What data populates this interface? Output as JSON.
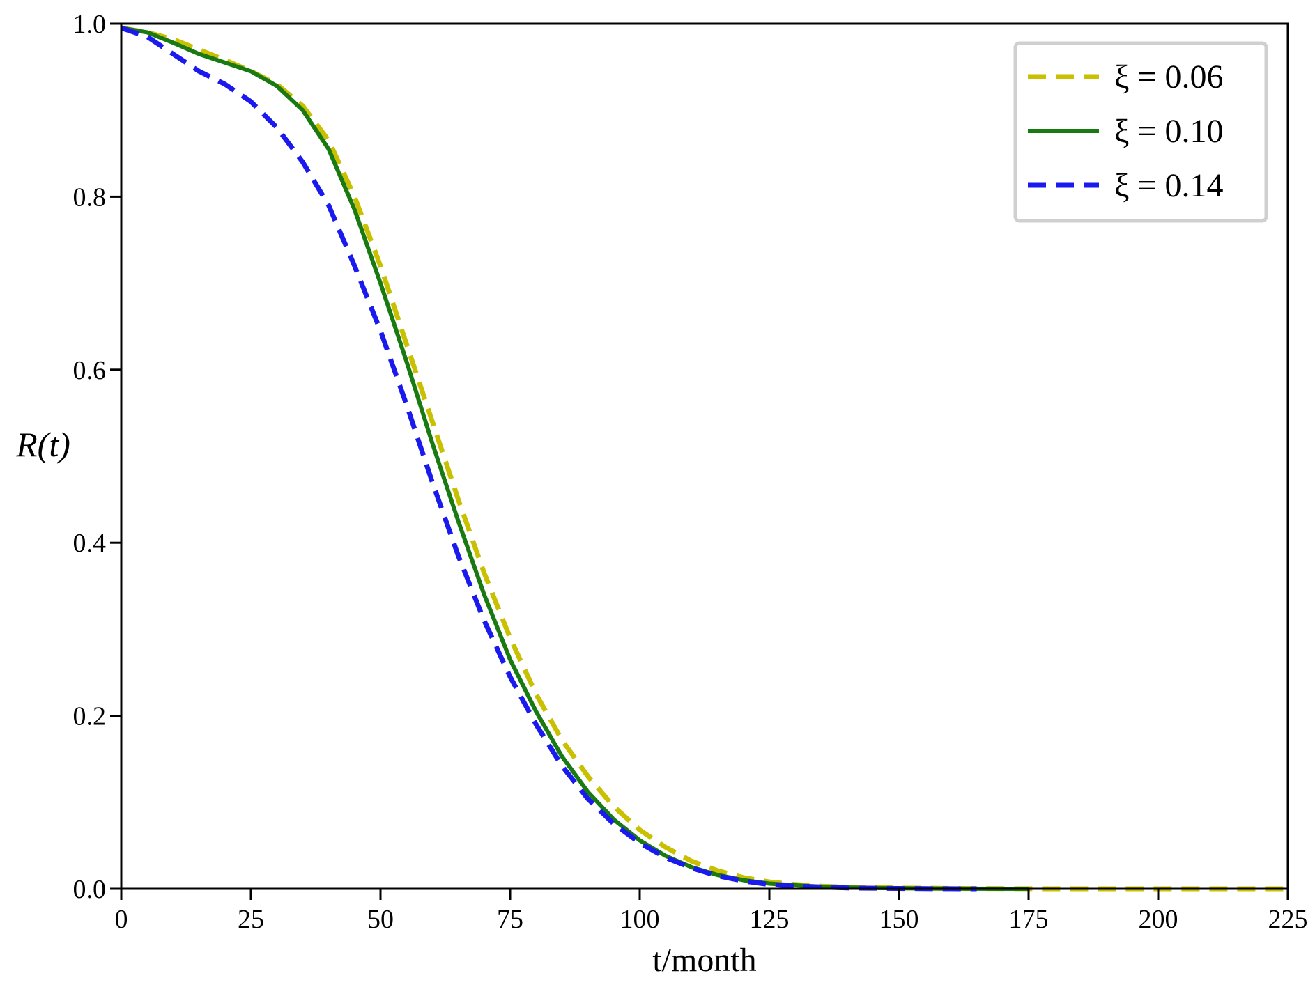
{
  "chart_data": {
    "type": "line",
    "xlabel": "t/month",
    "ylabel": "R(t)",
    "xlim": [
      0,
      225
    ],
    "ylim": [
      0,
      1.0
    ],
    "xticks": [
      0,
      25,
      50,
      75,
      100,
      125,
      150,
      175,
      200,
      225
    ],
    "xtick_labels": [
      "0",
      "25",
      "50",
      "75",
      "100",
      "125",
      "150",
      "175",
      "200",
      "225"
    ],
    "yticks": [
      0.0,
      0.2,
      0.4,
      0.6,
      0.8,
      1.0
    ],
    "ytick_labels": [
      "0.0",
      "0.2",
      "0.4",
      "0.6",
      "0.8",
      "1.0"
    ],
    "grid": false,
    "legend_position": "top-right",
    "series": [
      {
        "name": "ξ = 0.06",
        "color": "#c8c000",
        "dash": "dashed",
        "x": [
          0,
          5,
          10,
          15,
          20,
          25,
          30,
          35,
          40,
          45,
          50,
          55,
          60,
          65,
          70,
          75,
          80,
          85,
          90,
          95,
          100,
          105,
          110,
          115,
          120,
          125,
          130,
          135,
          140,
          145,
          150,
          155,
          160,
          165,
          170,
          175,
          180,
          190,
          200,
          210,
          225
        ],
        "y": [
          0.995,
          0.99,
          0.982,
          0.97,
          0.958,
          0.945,
          0.93,
          0.905,
          0.865,
          0.8,
          0.72,
          0.63,
          0.54,
          0.45,
          0.365,
          0.29,
          0.225,
          0.172,
          0.13,
          0.095,
          0.068,
          0.048,
          0.032,
          0.021,
          0.013,
          0.008,
          0.005,
          0.003,
          0.002,
          0.0015,
          0.001,
          0.0008,
          0.0005,
          0.0003,
          0.0002,
          0.0001,
          0.0,
          0.0,
          0.0,
          0.0,
          0.0
        ]
      },
      {
        "name": "ξ = 0.10",
        "color": "#1a7a12",
        "dash": "solid",
        "x": [
          0,
          5,
          10,
          15,
          20,
          25,
          30,
          35,
          40,
          45,
          50,
          55,
          60,
          65,
          70,
          75,
          80,
          85,
          90,
          95,
          100,
          105,
          110,
          115,
          120,
          125,
          130,
          135,
          140,
          145,
          150,
          155,
          160,
          165,
          170,
          175
        ],
        "y": [
          0.995,
          0.99,
          0.978,
          0.965,
          0.955,
          0.945,
          0.928,
          0.9,
          0.855,
          0.785,
          0.7,
          0.61,
          0.515,
          0.425,
          0.34,
          0.265,
          0.205,
          0.153,
          0.112,
          0.08,
          0.056,
          0.038,
          0.025,
          0.016,
          0.01,
          0.006,
          0.004,
          0.0025,
          0.0015,
          0.001,
          0.0007,
          0.0004,
          0.0002,
          0.0001,
          0.0,
          0.0
        ]
      },
      {
        "name": "ξ = 0.14",
        "color": "#1a1aee",
        "dash": "dashed",
        "x": [
          0,
          5,
          10,
          15,
          20,
          25,
          30,
          35,
          40,
          45,
          50,
          55,
          60,
          65,
          70,
          75,
          80,
          85,
          90,
          95,
          100,
          105,
          110,
          115,
          120,
          125,
          130,
          135,
          140,
          145,
          150,
          155,
          160,
          165
        ],
        "y": [
          0.995,
          0.985,
          0.965,
          0.945,
          0.93,
          0.91,
          0.88,
          0.84,
          0.79,
          0.72,
          0.645,
          0.56,
          0.47,
          0.385,
          0.31,
          0.245,
          0.19,
          0.142,
          0.104,
          0.075,
          0.053,
          0.036,
          0.024,
          0.015,
          0.009,
          0.005,
          0.003,
          0.002,
          0.001,
          0.0007,
          0.0004,
          0.0002,
          0.0001,
          0.0
        ]
      }
    ]
  }
}
